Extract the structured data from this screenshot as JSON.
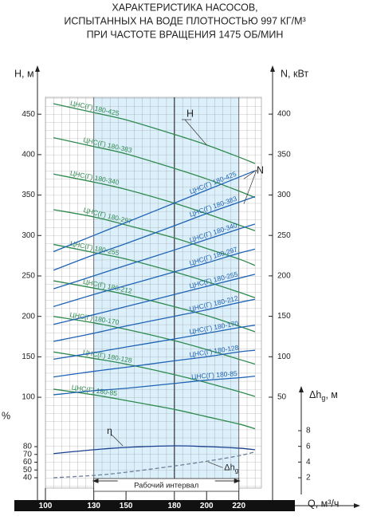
{
  "chart_data": {
    "type": "pump",
    "title": [
      "ХАРАКТЕРИСТИКА НАСОСОВ,",
      "ИСПЫТАННЫХ НА ВОДЕ ПЛОТНОСТЬЮ 997 КГ/М³",
      "ПРИ ЧАСТОТЕ ВРАЩЕНИЯ 1475 ОБ/МИН"
    ],
    "x_label": "Q, м³/ч",
    "y_label": "H, м",
    "y2_label": "N, кВт",
    "y3_label": "%",
    "y4_label": {
      "main": "Δh",
      "sub": "g",
      "unit": ", м"
    },
    "x": [
      105,
      130,
      150,
      180,
      200,
      220,
      230
    ],
    "xlim": [
      100,
      234
    ],
    "xticks": [
      100,
      130,
      150,
      180,
      200,
      220
    ],
    "ylim": [
      0,
      470
    ],
    "yticks": [
      100,
      150,
      200,
      250,
      300,
      350,
      400,
      450
    ],
    "y2lim": [
      0,
      420
    ],
    "y2ticks": [
      50,
      100,
      150,
      200,
      250,
      300,
      350,
      400
    ],
    "y3lim": [
      40,
      80
    ],
    "y3ticks": [
      40,
      50,
      60,
      70,
      80
    ],
    "y4lim": [
      2,
      8
    ],
    "y4ticks": [
      2,
      4,
      6,
      8
    ],
    "work_interval": [
      130,
      220
    ],
    "work_interval_label": "Рабочий интервал",
    "rated_x": 180,
    "h_callout": "H",
    "n_callout": "N",
    "series": [
      {
        "name": "ЦНС(Г) 180-425",
        "color": "#2f8a4f",
        "axis": "y",
        "values": [
          463,
          452,
          443,
          425,
          412,
          397,
          389
        ]
      },
      {
        "name": "ЦНС(Г) 180-383",
        "color": "#2f8a4f",
        "axis": "y",
        "values": [
          421,
          410,
          401,
          383,
          370,
          355,
          347
        ]
      },
      {
        "name": "ЦНС(Г) 180-340",
        "color": "#2f8a4f",
        "axis": "y",
        "values": [
          376,
          366,
          357,
          340,
          327,
          313,
          306
        ]
      },
      {
        "name": "ЦНС(Г) 180-297",
        "color": "#2f8a4f",
        "axis": "y",
        "values": [
          332,
          323,
          313,
          297,
          284,
          271,
          263
        ]
      },
      {
        "name": "ЦНС(Г) 180-255",
        "color": "#2f8a4f",
        "axis": "y",
        "values": [
          289,
          279,
          271,
          255,
          243,
          230,
          223
        ]
      },
      {
        "name": "ЦНС(Г) 180-212",
        "color": "#2f8a4f",
        "axis": "y",
        "values": [
          244,
          235,
          227,
          212,
          201,
          188,
          181
        ]
      },
      {
        "name": "ЦНС(Г) 180-170",
        "color": "#2f8a4f",
        "axis": "y",
        "values": [
          200,
          192,
          184,
          170,
          159,
          147,
          141
        ]
      },
      {
        "name": "ЦНС(Г) 180-128",
        "color": "#2f8a4f",
        "axis": "y",
        "values": [
          156,
          148,
          141,
          128,
          118,
          107,
          101
        ]
      },
      {
        "name": "ЦНС(Г) 180-85",
        "color": "#2f8a4f",
        "axis": "y",
        "values": [
          110,
          103,
          96,
          85,
          76,
          67,
          61
        ]
      },
      {
        "name": "ЦНС(Г) 180-425",
        "color": "#1f63b5",
        "axis": "y2",
        "values": [
          230,
          250,
          266,
          290,
          306,
          322,
          330
        ]
      },
      {
        "name": "ЦНС(Г) 180-383",
        "color": "#1f63b5",
        "axis": "y2",
        "values": [
          207,
          226,
          240,
          262,
          277,
          291,
          298
        ]
      },
      {
        "name": "ЦНС(Г) 180-340",
        "color": "#1f63b5",
        "axis": "y2",
        "values": [
          184,
          200,
          213,
          232,
          245,
          258,
          264
        ]
      },
      {
        "name": "ЦНС(Г) 180-297",
        "color": "#1f63b5",
        "axis": "y2",
        "values": [
          162,
          177,
          188,
          205,
          216,
          228,
          233
        ]
      },
      {
        "name": "ЦНС(Г) 180-255",
        "color": "#1f63b5",
        "axis": "y2",
        "values": [
          140,
          152,
          162,
          177,
          187,
          197,
          202
        ]
      },
      {
        "name": "ЦНС(Г) 180-212",
        "color": "#1f63b5",
        "axis": "y2",
        "values": [
          119,
          129,
          138,
          150,
          158,
          167,
          171
        ]
      },
      {
        "name": "ЦНС(Г) 180-170",
        "color": "#1f63b5",
        "axis": "y2",
        "values": [
          97,
          105,
          112,
          122,
          129,
          136,
          139
        ]
      },
      {
        "name": "ЦНС(Г) 180-128",
        "color": "#1f63b5",
        "axis": "y2",
        "values": [
          75,
          82,
          87,
          95,
          100,
          106,
          108
        ]
      },
      {
        "name": "ЦНС(Г) 180-85",
        "color": "#1f63b5",
        "axis": "y2",
        "values": [
          53,
          58,
          61,
          67,
          71,
          74,
          76
        ]
      },
      {
        "name": "η",
        "color": "#1b3f8f",
        "axis": "y3",
        "values": [
          71,
          76,
          79,
          81,
          80,
          78,
          76
        ]
      },
      {
        "name": "Δh",
        "name_sub": "g",
        "color": "#6b7f99",
        "axis": "y4",
        "style": "dashed",
        "values": [
          2.0,
          2.3,
          2.7,
          3.5,
          4.1,
          4.8,
          5.3
        ]
      }
    ]
  }
}
